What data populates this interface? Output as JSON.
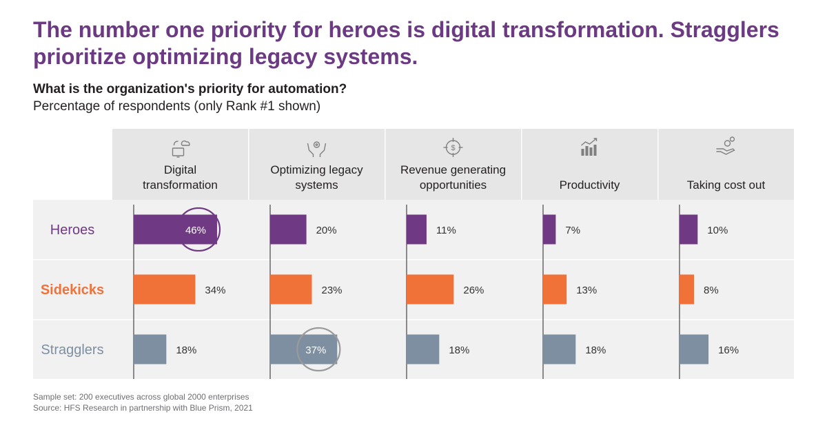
{
  "colors": {
    "title": "#6b3a82",
    "heroes": "#6f3a83",
    "sidekicks": "#f07238",
    "stragglers": "#7d8fa0",
    "header_bg": "#e6e6e7",
    "row_bg": "#f1f1f2",
    "text": "#231f20",
    "highlight_stragglers": "#9a9a9a"
  },
  "title": "The number one priority for heroes is digital transformation. Stragglers prioritize optimizing legacy systems.",
  "question": "What is the organization's priority for automation?",
  "subtitle": "Percentage of respondents (only Rank #1 shown)",
  "footer": {
    "sample": "Sample set: 200 executives across global 2000 enterprises",
    "source": "Source: HFS Research in partnership with Blue Prism, 2021"
  },
  "chart_data": {
    "type": "bar",
    "title": "What is the organization's priority for automation?",
    "subtitle": "Percentage of respondents (only Rank #1 shown)",
    "unit": "%",
    "categories": [
      {
        "label": "Digital transformation",
        "lines": [
          "Digital",
          "transformation"
        ],
        "icon": "cloud-computer-icon"
      },
      {
        "label": "Optimizing legacy systems",
        "lines": [
          "Optimizing legacy",
          "systems"
        ],
        "icon": "hands-gear-icon"
      },
      {
        "label": "Revenue generating opportunities",
        "lines": [
          "Revenue generating",
          "opportunities"
        ],
        "icon": "target-dollar-icon"
      },
      {
        "label": "Productivity",
        "lines": [
          "Productivity"
        ],
        "icon": "growth-chart-icon"
      },
      {
        "label": "Taking cost out",
        "lines": [
          "Taking cost out"
        ],
        "icon": "hand-coins-icon"
      }
    ],
    "series": [
      {
        "name": "Heroes",
        "values": [
          46,
          20,
          11,
          7,
          10
        ],
        "labels": [
          "46%",
          "20%",
          "11%",
          "7%",
          "10%"
        ]
      },
      {
        "name": "Sidekicks",
        "values": [
          34,
          23,
          26,
          13,
          8
        ],
        "labels": [
          "34%",
          "23%",
          "26%",
          "13%",
          "8%"
        ]
      },
      {
        "name": "Stragglers",
        "values": [
          18,
          37,
          18,
          18,
          16
        ],
        "labels": [
          "18%",
          "37%",
          "18%",
          "18%",
          "16%"
        ]
      }
    ],
    "highlights": [
      {
        "series": "Heroes",
        "category": "Digital transformation"
      },
      {
        "series": "Stragglers",
        "category": "Optimizing legacy systems"
      }
    ],
    "grid": false,
    "legend": "none"
  }
}
